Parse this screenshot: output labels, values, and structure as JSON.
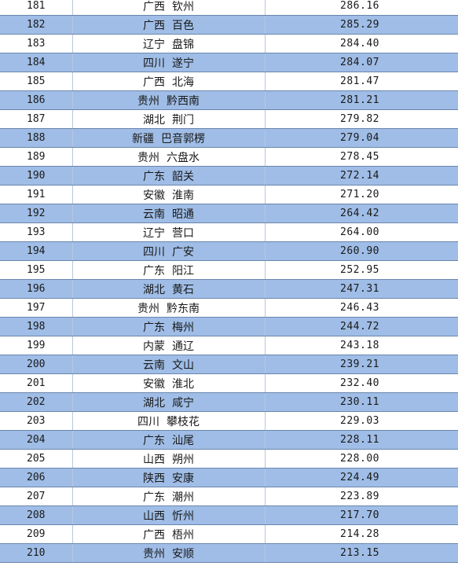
{
  "table": {
    "rows": [
      {
        "rank": "181",
        "province": "广西",
        "city": "钦州",
        "value": "286.16"
      },
      {
        "rank": "182",
        "province": "广西",
        "city": "百色",
        "value": "285.29"
      },
      {
        "rank": "183",
        "province": "辽宁",
        "city": "盘锦",
        "value": "284.40"
      },
      {
        "rank": "184",
        "province": "四川",
        "city": "遂宁",
        "value": "284.07"
      },
      {
        "rank": "185",
        "province": "广西",
        "city": "北海",
        "value": "281.47"
      },
      {
        "rank": "186",
        "province": "贵州",
        "city": "黔西南",
        "value": "281.21"
      },
      {
        "rank": "187",
        "province": "湖北",
        "city": "荆门",
        "value": "279.82"
      },
      {
        "rank": "188",
        "province": "新疆",
        "city": "巴音郭楞",
        "value": "279.04"
      },
      {
        "rank": "189",
        "province": "贵州",
        "city": "六盘水",
        "value": "278.45"
      },
      {
        "rank": "190",
        "province": "广东",
        "city": "韶关",
        "value": "272.14"
      },
      {
        "rank": "191",
        "province": "安徽",
        "city": "淮南",
        "value": "271.20"
      },
      {
        "rank": "192",
        "province": "云南",
        "city": "昭通",
        "value": "264.42"
      },
      {
        "rank": "193",
        "province": "辽宁",
        "city": "营口",
        "value": "264.00"
      },
      {
        "rank": "194",
        "province": "四川",
        "city": "广安",
        "value": "260.90"
      },
      {
        "rank": "195",
        "province": "广东",
        "city": "阳江",
        "value": "252.95"
      },
      {
        "rank": "196",
        "province": "湖北",
        "city": "黄石",
        "value": "247.31"
      },
      {
        "rank": "197",
        "province": "贵州",
        "city": "黔东南",
        "value": "246.43"
      },
      {
        "rank": "198",
        "province": "广东",
        "city": "梅州",
        "value": "244.72"
      },
      {
        "rank": "199",
        "province": "内蒙",
        "city": "通辽",
        "value": "243.18"
      },
      {
        "rank": "200",
        "province": "云南",
        "city": "文山",
        "value": "239.21"
      },
      {
        "rank": "201",
        "province": "安徽",
        "city": "淮北",
        "value": "232.40"
      },
      {
        "rank": "202",
        "province": "湖北",
        "city": "咸宁",
        "value": "230.11"
      },
      {
        "rank": "203",
        "province": "四川",
        "city": "攀枝花",
        "value": "229.03"
      },
      {
        "rank": "204",
        "province": "广东",
        "city": "汕尾",
        "value": "228.11"
      },
      {
        "rank": "205",
        "province": "山西",
        "city": "朔州",
        "value": "228.00"
      },
      {
        "rank": "206",
        "province": "陕西",
        "city": "安康",
        "value": "224.49"
      },
      {
        "rank": "207",
        "province": "广东",
        "city": "潮州",
        "value": "223.89"
      },
      {
        "rank": "208",
        "province": "山西",
        "city": "忻州",
        "value": "217.70"
      },
      {
        "rank": "209",
        "province": "广西",
        "city": "梧州",
        "value": "214.28"
      },
      {
        "rank": "210",
        "province": "贵州",
        "city": "安顺",
        "value": "213.15"
      }
    ],
    "colors": {
      "band": "#9fbde6",
      "plain": "#ffffff",
      "rule": "#6a86ad"
    }
  }
}
